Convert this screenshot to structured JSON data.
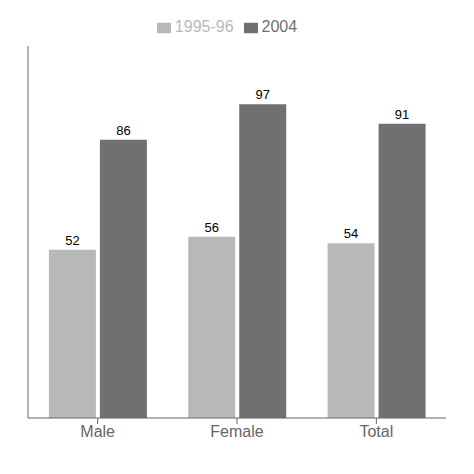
{
  "chart_data": {
    "type": "bar",
    "categories": [
      "Male",
      "Female",
      "Total"
    ],
    "series": [
      {
        "name": "1995-96",
        "color": "#b8b8b8",
        "values": [
          52,
          56,
          54
        ]
      },
      {
        "name": "2004",
        "color": "#707070",
        "values": [
          86,
          97,
          91
        ]
      }
    ],
    "ylim": [
      0,
      115
    ],
    "grid": false,
    "legend": "top",
    "data_labels": true,
    "tick_labels": "x"
  }
}
